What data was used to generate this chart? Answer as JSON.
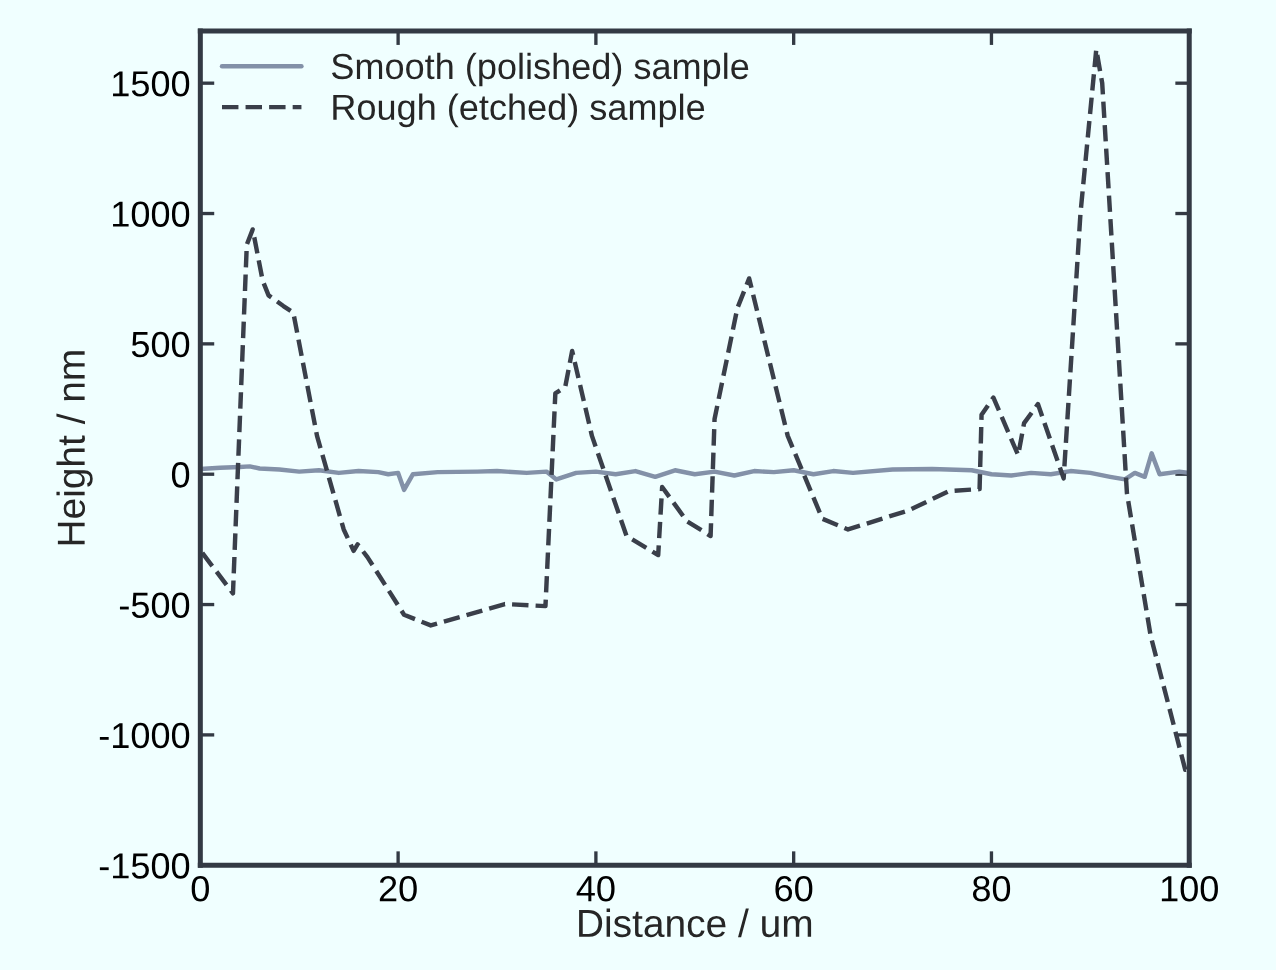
{
  "chart_data": {
    "type": "line",
    "xlabel": "Distance / um",
    "ylabel": "Height / nm",
    "xlim": [
      0,
      100
    ],
    "xticks": [
      0,
      20,
      40,
      60,
      80,
      100
    ],
    "ylim": [
      -1500,
      1700
    ],
    "yticks": [
      -1500,
      -1000,
      -500,
      0,
      500,
      1000,
      1500
    ],
    "grid": false,
    "legend": "top left",
    "marker": "none",
    "series": [
      {
        "name": "Smooth (polished) sample",
        "color": "#8391a8",
        "line_style": "solid",
        "x": [
          0,
          2,
          4,
          5,
          6,
          8,
          10,
          12,
          14,
          16,
          18,
          19,
          20,
          20.6,
          21.5,
          24,
          28,
          30,
          33,
          35,
          36,
          38,
          40,
          42,
          44,
          46,
          48,
          50,
          52,
          54,
          56,
          58,
          60,
          62,
          64,
          66,
          70,
          74,
          78,
          80,
          82,
          84,
          86,
          88,
          90,
          92,
          93.5,
          94.5,
          95.5,
          96.2,
          97,
          99,
          100
        ],
        "values": [
          20,
          25,
          28,
          30,
          22,
          18,
          10,
          15,
          5,
          12,
          8,
          0,
          5,
          -60,
          0,
          8,
          10,
          12,
          5,
          10,
          -20,
          5,
          10,
          0,
          12,
          -10,
          15,
          0,
          10,
          -5,
          12,
          8,
          15,
          0,
          12,
          5,
          18,
          20,
          15,
          0,
          -5,
          5,
          0,
          12,
          5,
          -10,
          -20,
          5,
          -10,
          80,
          0,
          10,
          5
        ]
      },
      {
        "name": "Rough (etched) sample",
        "color": "#3a3f4a",
        "line_style": "dashed",
        "x": [
          0.2,
          3.3,
          4.7,
          5.3,
          6.3,
          6.9,
          8.4,
          9.4,
          11.8,
          14.5,
          15.5,
          15.9,
          16.9,
          20.6,
          23.3,
          30.8,
          34.9,
          35.9,
          36.9,
          37.6,
          39.6,
          43.1,
          46.3,
          46.7,
          49.2,
          51.6,
          52.0,
          54.3,
          55.5,
          59.4,
          62.9,
          65.5,
          71.6,
          75.7,
          78.8,
          79.0,
          80.2,
          82.7,
          83.3,
          84.7,
          87.3,
          89.0,
          90.6,
          91.2,
          93.7,
          96.1,
          99.6,
          100
        ],
        "values": [
          -302,
          -457,
          881,
          939,
          743,
          686,
          645,
          620,
          147,
          -212,
          -294,
          -269,
          -318,
          -539,
          -580,
          -498,
          -506,
          310,
          335,
          473,
          147,
          -237,
          -310,
          -49,
          -180,
          -237,
          212,
          636,
          751,
          147,
          -171,
          -212,
          -139,
          -65,
          -57,
          228,
          294,
          73,
          196,
          269,
          -16,
          1000,
          1630,
          1500,
          -73,
          -620,
          -1134,
          -1130
        ]
      }
    ]
  }
}
